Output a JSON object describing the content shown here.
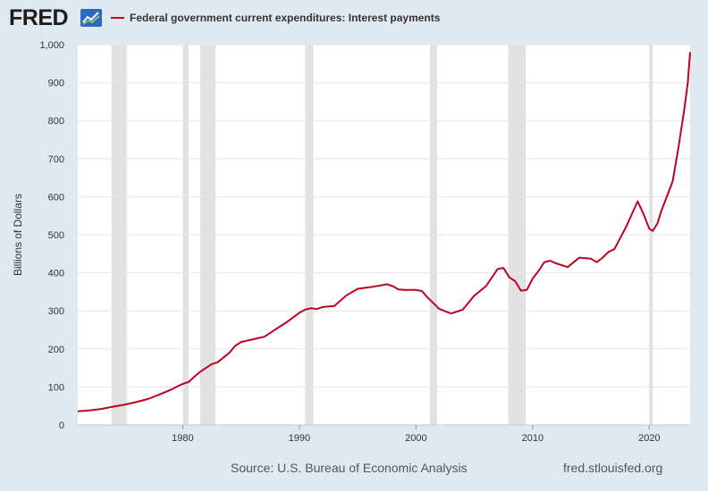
{
  "logo": {
    "text": "FRED"
  },
  "colors": {
    "line": "#c00020",
    "recession": "#e1e1e1",
    "grid": "#e6e6e6",
    "background": "#e1e9f0",
    "plot": "#ffffff"
  },
  "footer": {
    "source": "Source: U.S. Bureau of Economic Analysis",
    "url": "fred.stlouisfed.org"
  },
  "chart_data": {
    "type": "line",
    "title": "Federal government current expenditures: Interest payments",
    "xlabel": "",
    "ylabel": "Billions of Dollars",
    "xlim": [
      1971.0,
      2023.5
    ],
    "ylim": [
      0,
      1000
    ],
    "yticks": [
      0,
      100,
      200,
      300,
      400,
      500,
      600,
      700,
      800,
      900,
      1000
    ],
    "ytick_labels": [
      "0",
      "100",
      "200",
      "300",
      "400",
      "500",
      "600",
      "700",
      "800",
      "900",
      "1,000"
    ],
    "xticks": [
      1980,
      1990,
      2000,
      2010,
      2020
    ],
    "xtick_labels": [
      "1980",
      "1990",
      "2000",
      "2010",
      "2020"
    ],
    "legend_position": "top-left",
    "grid": "horizontal",
    "recessions": [
      [
        1973.9,
        1975.2
      ],
      [
        1980.0,
        1980.5
      ],
      [
        1981.5,
        1982.8
      ],
      [
        1990.5,
        1991.2
      ],
      [
        2001.2,
        2001.8
      ],
      [
        2007.9,
        2009.4
      ],
      [
        2020.0,
        2020.3
      ]
    ],
    "series": [
      {
        "name": "Federal government current expenditures: Interest payments",
        "x": [
          1971.0,
          1972.0,
          1973.0,
          1974.0,
          1975.0,
          1976.0,
          1977.0,
          1978.0,
          1979.0,
          1980.0,
          1980.5,
          1981.0,
          1981.5,
          1982.0,
          1982.5,
          1983.0,
          1984.0,
          1984.5,
          1985.0,
          1986.0,
          1987.0,
          1988.0,
          1989.0,
          1990.0,
          1990.5,
          1991.0,
          1991.5,
          1992.0,
          1993.0,
          1994.0,
          1995.0,
          1996.0,
          1997.0,
          1997.5,
          1998.0,
          1998.5,
          1999.0,
          2000.0,
          2000.5,
          2001.0,
          2001.5,
          2002.0,
          2003.0,
          2004.0,
          2005.0,
          2006.0,
          2007.0,
          2007.5,
          2008.0,
          2008.5,
          2009.0,
          2009.5,
          2010.0,
          2010.5,
          2011.0,
          2011.5,
          2012.0,
          2013.0,
          2014.0,
          2015.0,
          2015.5,
          2016.0,
          2016.5,
          2017.0,
          2018.0,
          2019.0,
          2019.5,
          2020.0,
          2020.3,
          2020.7,
          2021.0,
          2021.5,
          2022.0,
          2022.5,
          2023.0,
          2023.3,
          2023.5
        ],
        "values": [
          36,
          38,
          42,
          48,
          53,
          60,
          68,
          80,
          93,
          108,
          113,
          127,
          140,
          150,
          160,
          165,
          190,
          208,
          218,
          225,
          232,
          252,
          272,
          295,
          303,
          307,
          305,
          310,
          313,
          340,
          358,
          362,
          367,
          370,
          365,
          356,
          355,
          355,
          352,
          335,
          320,
          305,
          293,
          303,
          340,
          365,
          410,
          413,
          388,
          378,
          353,
          355,
          385,
          405,
          428,
          432,
          425,
          415,
          440,
          437,
          428,
          440,
          455,
          462,
          520,
          588,
          555,
          516,
          510,
          530,
          560,
          600,
          640,
          730,
          830,
          900,
          980
        ]
      }
    ]
  }
}
